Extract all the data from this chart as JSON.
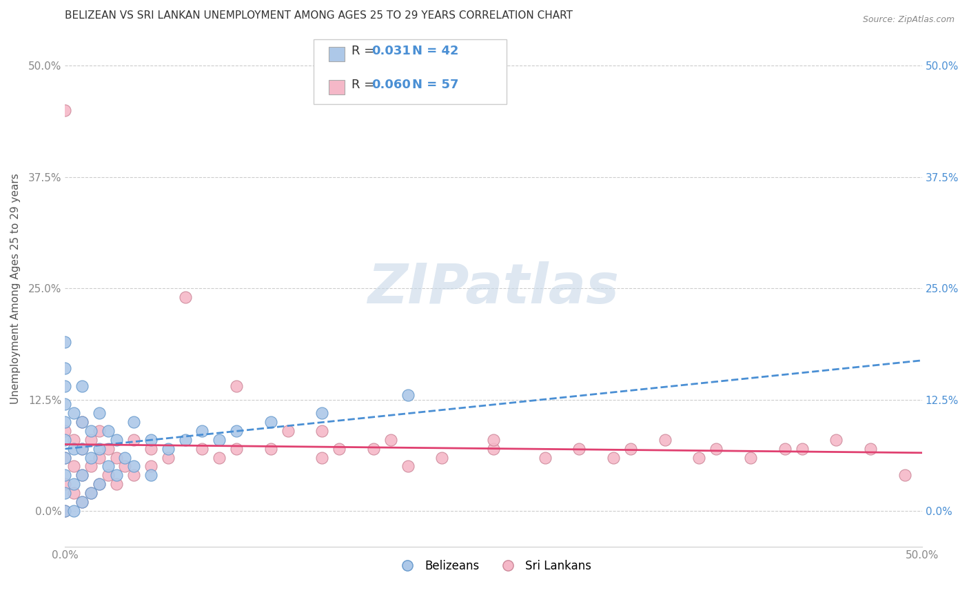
{
  "title": "BELIZEAN VS SRI LANKAN UNEMPLOYMENT AMONG AGES 25 TO 29 YEARS CORRELATION CHART",
  "source": "Source: ZipAtlas.com",
  "ylabel": "Unemployment Among Ages 25 to 29 years",
  "xlim": [
    0.0,
    0.5
  ],
  "ylim": [
    -0.04,
    0.54
  ],
  "yticks": [
    0.0,
    0.125,
    0.25,
    0.375,
    0.5
  ],
  "ytick_labels_left": [
    "0.0%",
    "12.5%",
    "25.0%",
    "37.5%",
    "50.0%"
  ],
  "ytick_labels_right": [
    "0.0%",
    "12.5%",
    "25.0%",
    "37.5%",
    "50.0%"
  ],
  "xticks": [
    0.0,
    0.5
  ],
  "xtick_labels": [
    "0.0%",
    "50.0%"
  ],
  "legend_r1": "R =  0.031   N = 42",
  "legend_r2": "R =  0.060   N = 57",
  "color_blue_fill": "#adc8e8",
  "color_blue_edge": "#6699cc",
  "color_pink_fill": "#f5b8c8",
  "color_pink_edge": "#cc8899",
  "color_blue_line": "#4a8fd4",
  "color_pink_line": "#e04070",
  "color_right_axis": "#4a8fd4",
  "watermark_text": "ZIPatlas",
  "watermark_color": "#c8d8e8",
  "bg_color": "#ffffff",
  "grid_color": "#cccccc",
  "title_fontsize": 11,
  "axis_label_fontsize": 11,
  "tick_fontsize": 11,
  "legend_fontsize": 13,
  "belizean_x": [
    0.0,
    0.0,
    0.0,
    0.0,
    0.0,
    0.0,
    0.0,
    0.0,
    0.0,
    0.0,
    0.005,
    0.005,
    0.005,
    0.005,
    0.01,
    0.01,
    0.01,
    0.01,
    0.01,
    0.015,
    0.015,
    0.015,
    0.02,
    0.02,
    0.02,
    0.025,
    0.025,
    0.03,
    0.03,
    0.035,
    0.04,
    0.04,
    0.05,
    0.05,
    0.06,
    0.07,
    0.08,
    0.09,
    0.1,
    0.12,
    0.15,
    0.2
  ],
  "belizean_y": [
    0.0,
    0.02,
    0.04,
    0.06,
    0.08,
    0.1,
    0.12,
    0.14,
    0.16,
    0.19,
    0.0,
    0.03,
    0.07,
    0.11,
    0.01,
    0.04,
    0.07,
    0.1,
    0.14,
    0.02,
    0.06,
    0.09,
    0.03,
    0.07,
    0.11,
    0.05,
    0.09,
    0.04,
    0.08,
    0.06,
    0.05,
    0.1,
    0.04,
    0.08,
    0.07,
    0.08,
    0.09,
    0.08,
    0.09,
    0.1,
    0.11,
    0.13
  ],
  "srilankan_x": [
    0.0,
    0.0,
    0.0,
    0.0,
    0.0,
    0.005,
    0.005,
    0.005,
    0.01,
    0.01,
    0.01,
    0.01,
    0.015,
    0.015,
    0.015,
    0.02,
    0.02,
    0.02,
    0.025,
    0.025,
    0.03,
    0.03,
    0.035,
    0.04,
    0.04,
    0.05,
    0.05,
    0.06,
    0.07,
    0.08,
    0.09,
    0.1,
    0.1,
    0.12,
    0.13,
    0.15,
    0.15,
    0.16,
    0.18,
    0.19,
    0.2,
    0.22,
    0.25,
    0.25,
    0.28,
    0.3,
    0.32,
    0.33,
    0.35,
    0.37,
    0.38,
    0.4,
    0.42,
    0.43,
    0.45,
    0.47,
    0.49
  ],
  "srilankan_y": [
    0.0,
    0.03,
    0.06,
    0.09,
    0.45,
    0.02,
    0.05,
    0.08,
    0.01,
    0.04,
    0.07,
    0.1,
    0.02,
    0.05,
    0.08,
    0.03,
    0.06,
    0.09,
    0.04,
    0.07,
    0.03,
    0.06,
    0.05,
    0.04,
    0.08,
    0.05,
    0.07,
    0.06,
    0.24,
    0.07,
    0.06,
    0.07,
    0.14,
    0.07,
    0.09,
    0.06,
    0.09,
    0.07,
    0.07,
    0.08,
    0.05,
    0.06,
    0.07,
    0.08,
    0.06,
    0.07,
    0.06,
    0.07,
    0.08,
    0.06,
    0.07,
    0.06,
    0.07,
    0.07,
    0.08,
    0.07,
    0.04
  ]
}
